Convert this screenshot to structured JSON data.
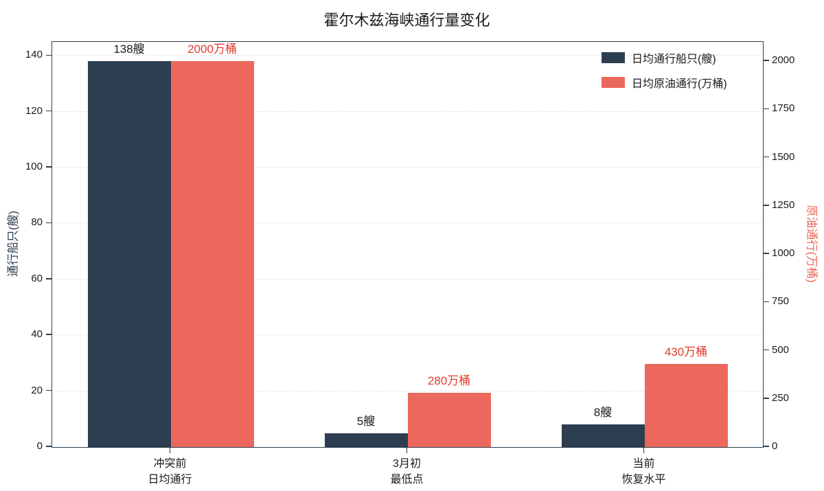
{
  "title": "霍尔木兹海峡通行量变化",
  "chart_data": {
    "type": "bar",
    "title": "霍尔木兹海峡通行量变化",
    "categories": [
      "冲突前\n日均通行",
      "3月初\n最低点",
      "当前\n恢复水平"
    ],
    "series": [
      {
        "name": "日均通行船只(艘)",
        "axis": "left",
        "color": "#2d3e50",
        "values": [
          138,
          5,
          8
        ],
        "labels": [
          "138艘",
          "5艘",
          "8艘"
        ],
        "label_color": "#1a1a1a"
      },
      {
        "name": "日均原油通行(万桶)",
        "axis": "right",
        "color": "#ec685c",
        "values": [
          2000,
          280,
          430
        ],
        "labels": [
          "2000万桶",
          "280万桶",
          "430万桶"
        ],
        "label_color": "#e23a2c"
      }
    ],
    "left_axis": {
      "label": "通行船只(艘)",
      "ticks": [
        0,
        20,
        40,
        60,
        80,
        100,
        120,
        140
      ],
      "max": 145,
      "title_color": "#2d3e50"
    },
    "right_axis": {
      "label": "原油通行(万桶)",
      "ticks": [
        0,
        250,
        500,
        750,
        1000,
        1250,
        1500,
        1750,
        2000
      ],
      "max": 2100,
      "title_color": "#ec685c"
    },
    "legend_position": "upper right",
    "grid": "dashed horizontal"
  }
}
